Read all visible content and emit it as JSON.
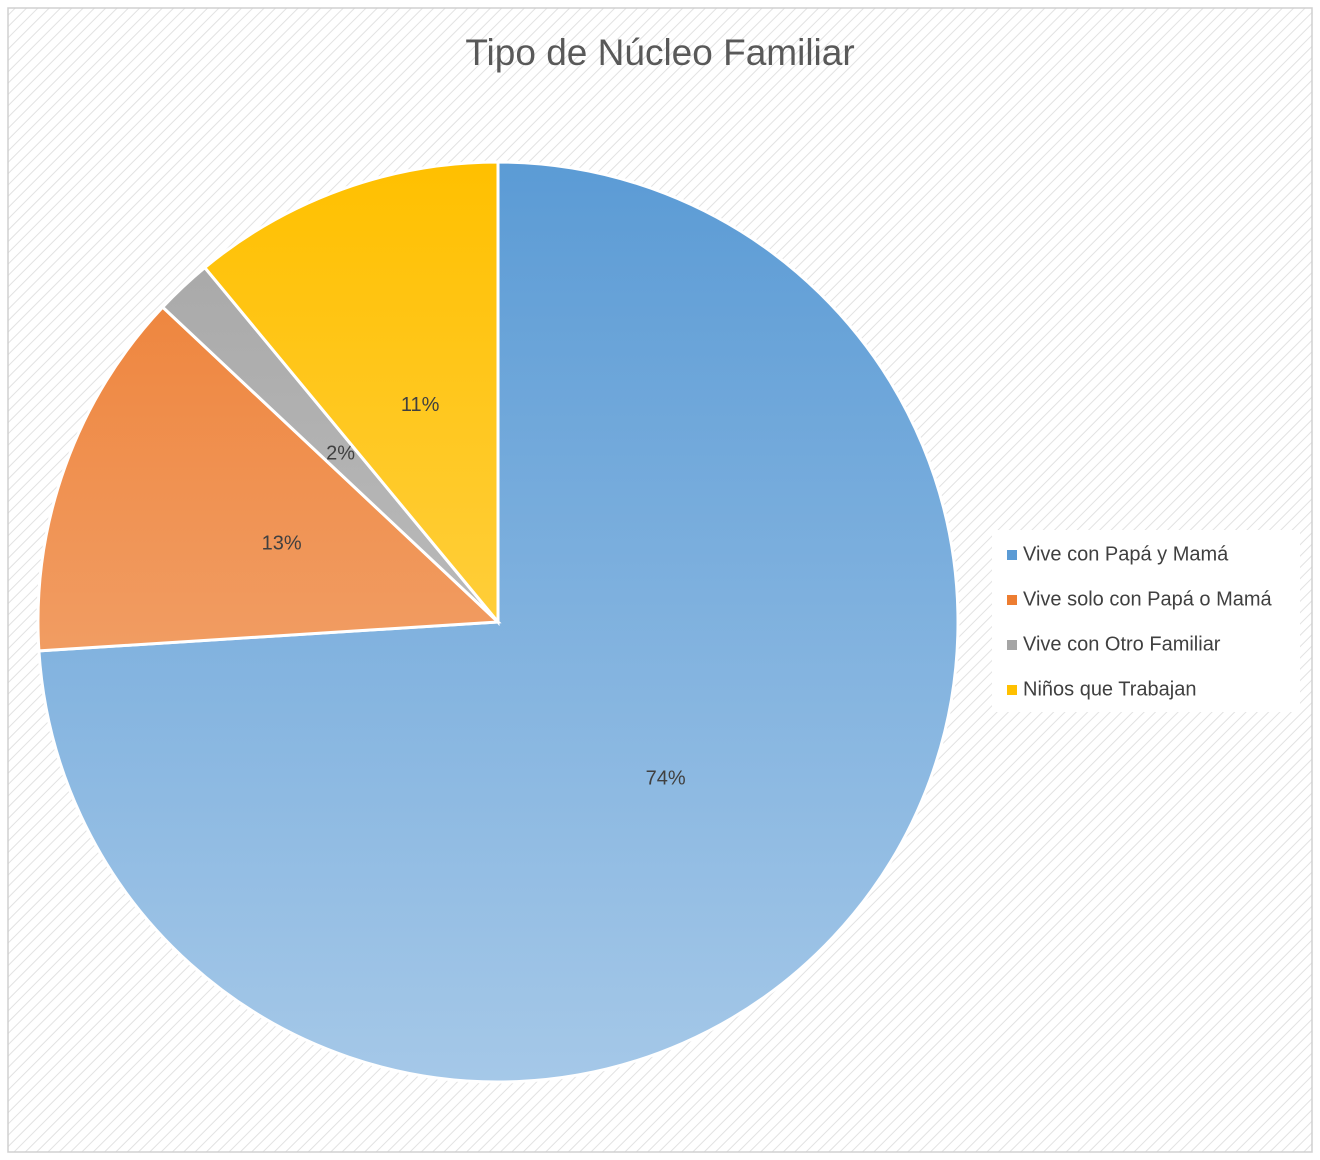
{
  "chart_data": {
    "type": "pie",
    "title": "Tipo de Núcleo Familiar",
    "categories": [
      "Vive con Papá y Mamá",
      "Vive solo con Papá o Mamá",
      "Vive con Otro Familiar",
      "Niños que Trabajan"
    ],
    "values": [
      74,
      13,
      2,
      11
    ],
    "value_labels": [
      "74%",
      "13%",
      "2%",
      "11%"
    ],
    "colors": [
      "#5b9bd5",
      "#ed7d31",
      "#a5a5a5",
      "#ffc000"
    ],
    "legend": "right"
  }
}
